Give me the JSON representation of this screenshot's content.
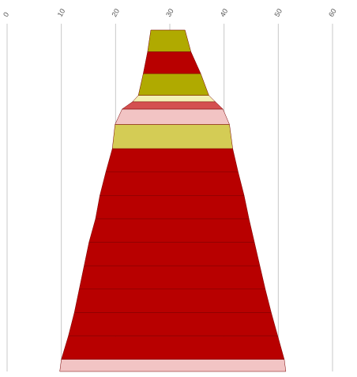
{
  "chart_data": {
    "type": "funnel",
    "title": "",
    "xlabel": "",
    "ylabel": "",
    "xlim": [
      0,
      60
    ],
    "x_ticks": [
      "0",
      "10",
      "20",
      "30",
      "40",
      "50",
      "60"
    ],
    "tick_label_rotation_deg": -60,
    "tick_position": "top",
    "grid": true,
    "legend": "none",
    "center_value": 30,
    "segments": [
      {
        "left": 26.5,
        "right": 32.8,
        "color": "#b0aa00"
      },
      {
        "left": 25.9,
        "right": 33.9,
        "color": "#b80000"
      },
      {
        "left": 25.1,
        "right": 35.7,
        "color": "#b0aa00"
      },
      {
        "left": 24.2,
        "right": 37.2,
        "color": "#f3f0b3"
      },
      {
        "left": 23.1,
        "right": 38.4,
        "color": "#d45050"
      },
      {
        "left": 21.2,
        "right": 39.8,
        "color": "#f2c4c4"
      },
      {
        "left": 19.9,
        "right": 41.0,
        "color": "#d4cc55"
      },
      {
        "left": 19.4,
        "right": 41.6,
        "color": "#b80000"
      },
      {
        "left": 18.2,
        "right": 42.6,
        "color": "#b80000"
      },
      {
        "left": 17.1,
        "right": 43.7,
        "color": "#b80000"
      },
      {
        "left": 16.3,
        "right": 44.6,
        "color": "#b80000"
      },
      {
        "left": 15.1,
        "right": 45.6,
        "color": "#b80000"
      },
      {
        "left": 14.2,
        "right": 46.6,
        "color": "#b80000"
      },
      {
        "left": 13.3,
        "right": 47.6,
        "color": "#b80000"
      },
      {
        "left": 12.4,
        "right": 48.7,
        "color": "#b80000"
      },
      {
        "left": 11.3,
        "right": 49.9,
        "color": "#b80000"
      },
      {
        "left": 10.0,
        "right": 51.1,
        "color": "#f2c4c4"
      }
    ]
  }
}
